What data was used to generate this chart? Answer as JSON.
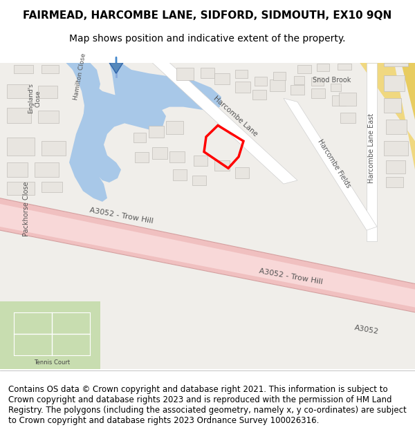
{
  "title": "FAIRMEAD, HARCOMBE LANE, SIDFORD, SIDMOUTH, EX10 9QN",
  "subtitle": "Map shows position and indicative extent of the property.",
  "footer": "Contains OS data © Crown copyright and database right 2021. This information is subject to Crown copyright and database rights 2023 and is reproduced with the permission of HM Land Registry. The polygons (including the associated geometry, namely x, y co-ordinates) are subject to Crown copyright and database rights 2023 Ordnance Survey 100026316.",
  "bg_color": "#f5f5f5",
  "map_bg": "#f0eeea",
  "road_color_major": "#f5c8c8",
  "road_color_minor": "#ffffff",
  "road_outline": "#d0b0b0",
  "building_color": "#e0ddd8",
  "building_outline": "#c0bdb8",
  "water_color": "#a8c8e8",
  "green_color": "#c8e8a8",
  "plot_color": "#ff0000",
  "road_label_color": "#555555",
  "title_fontsize": 11,
  "subtitle_fontsize": 10,
  "footer_fontsize": 8.5
}
